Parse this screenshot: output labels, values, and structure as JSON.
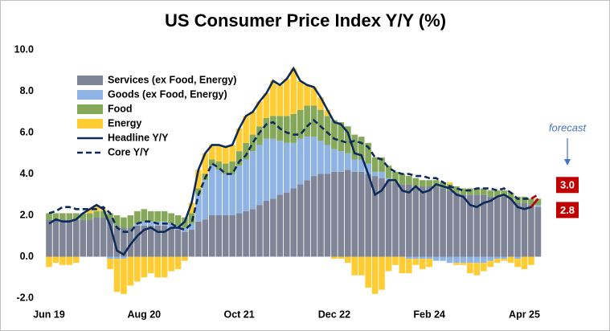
{
  "chart_data": {
    "type": "stacked-bar-line",
    "title": "US Consumer Price Index Y/Y (%)",
    "annotation": "forecast",
    "categories": [
      "Jun 19",
      null,
      null,
      null,
      null,
      null,
      null,
      null,
      null,
      null,
      null,
      null,
      null,
      null,
      "Aug 20",
      null,
      null,
      null,
      null,
      null,
      null,
      null,
      null,
      null,
      null,
      null,
      null,
      null,
      "Oct 21",
      null,
      null,
      null,
      null,
      null,
      null,
      null,
      null,
      null,
      null,
      null,
      null,
      null,
      "Dec 22",
      null,
      null,
      null,
      null,
      null,
      null,
      null,
      null,
      null,
      null,
      null,
      null,
      null,
      "Feb 24",
      null,
      null,
      null,
      null,
      null,
      null,
      null,
      null,
      null,
      null,
      null,
      null,
      null,
      "Apr 25",
      null,
      null
    ],
    "ylim": [
      -2,
      10
    ],
    "yticks": [
      {
        "value": -2,
        "label": "-2.0"
      },
      {
        "value": 0,
        "label": "0.0"
      },
      {
        "value": 2,
        "label": "2.0"
      },
      {
        "value": 4,
        "label": "4.0"
      },
      {
        "value": 6,
        "label": "6.0"
      },
      {
        "value": 8,
        "label": "8.0"
      },
      {
        "value": 10,
        "label": "10.0"
      }
    ],
    "grid": false,
    "legend": "upper-left",
    "forecast_color": "#c00000",
    "series": [
      {
        "name": "Services (ex Food, Energy)",
        "color": "#7f8596",
        "values": [
          1.8,
          1.8,
          1.8,
          1.8,
          1.8,
          1.8,
          1.8,
          1.9,
          1.9,
          1.8,
          1.5,
          1.4,
          1.4,
          1.5,
          1.5,
          1.5,
          1.5,
          1.5,
          1.4,
          1.3,
          1.2,
          1.3,
          1.7,
          1.8,
          2.0,
          2.0,
          2.0,
          2.0,
          2.1,
          2.2,
          2.3,
          2.5,
          2.7,
          2.8,
          3.0,
          3.1,
          3.3,
          3.5,
          3.7,
          3.9,
          4.0,
          4.0,
          4.1,
          4.1,
          4.2,
          4.1,
          4.1,
          4.0,
          3.9,
          3.8,
          3.7,
          3.6,
          3.5,
          3.5,
          3.4,
          3.4,
          3.4,
          3.4,
          3.3,
          3.2,
          3.1,
          3.0,
          3.0,
          3.0,
          3.0,
          2.9,
          2.9,
          2.9,
          2.8,
          2.6,
          2.6,
          2.5,
          2.4
        ]
      },
      {
        "name": "Goods (ex Food, Energy)",
        "color": "#8fb4e3",
        "values": [
          0.0,
          0.0,
          0.0,
          0.0,
          0.0,
          0.0,
          0.0,
          0.0,
          0.0,
          -0.1,
          -0.1,
          -0.1,
          0.0,
          0.1,
          0.2,
          0.2,
          0.2,
          0.2,
          0.2,
          0.2,
          0.2,
          0.3,
          1.3,
          1.9,
          2.4,
          2.2,
          2.0,
          2.0,
          2.3,
          2.5,
          2.8,
          2.9,
          3.0,
          2.9,
          2.6,
          2.4,
          2.2,
          2.2,
          2.1,
          1.9,
          1.6,
          1.4,
          1.1,
          1.0,
          0.8,
          0.6,
          0.6,
          0.5,
          0.2,
          0.3,
          0.1,
          0.0,
          0.0,
          -0.1,
          -0.1,
          -0.1,
          -0.1,
          -0.2,
          -0.2,
          -0.3,
          -0.3,
          -0.3,
          -0.3,
          -0.3,
          -0.3,
          -0.2,
          -0.1,
          -0.1,
          0.0,
          -0.1,
          0.0,
          0.0,
          0.1
        ]
      },
      {
        "name": "Food",
        "color": "#86a85a",
        "values": [
          0.3,
          0.3,
          0.3,
          0.3,
          0.3,
          0.3,
          0.3,
          0.3,
          0.3,
          0.3,
          0.5,
          0.5,
          0.6,
          0.6,
          0.6,
          0.5,
          0.5,
          0.5,
          0.5,
          0.5,
          0.5,
          0.5,
          0.3,
          0.3,
          0.3,
          0.4,
          0.5,
          0.6,
          0.7,
          0.8,
          0.8,
          0.9,
          1.0,
          1.1,
          1.2,
          1.3,
          1.4,
          1.4,
          1.5,
          1.5,
          1.5,
          1.4,
          1.4,
          1.4,
          1.3,
          1.2,
          1.1,
          1.0,
          0.7,
          0.7,
          0.6,
          0.5,
          0.5,
          0.4,
          0.4,
          0.3,
          0.3,
          0.3,
          0.3,
          0.3,
          0.3,
          0.3,
          0.3,
          0.3,
          0.3,
          0.3,
          0.3,
          0.3,
          0.3,
          0.3,
          0.3,
          0.3,
          0.3
        ]
      },
      {
        "name": "Energy",
        "color": "#ffcc33",
        "values": [
          -0.5,
          -0.3,
          -0.4,
          -0.4,
          -0.3,
          0.0,
          0.2,
          0.3,
          0.1,
          -0.5,
          -1.6,
          -1.7,
          -1.4,
          -1.2,
          -1.0,
          -0.8,
          -1.0,
          -1.0,
          -0.7,
          -0.6,
          -0.2,
          0.5,
          0.9,
          1.0,
          0.7,
          0.8,
          0.8,
          0.8,
          1.1,
          1.3,
          1.1,
          1.2,
          1.2,
          1.7,
          1.5,
          1.8,
          2.2,
          1.4,
          1.0,
          0.9,
          0.6,
          0.3,
          -0.1,
          -0.1,
          -0.3,
          -0.9,
          -0.9,
          -1.5,
          -1.8,
          -1.6,
          -0.7,
          -0.4,
          -0.8,
          -0.7,
          -0.3,
          -0.5,
          -0.4,
          0.0,
          0.0,
          0.1,
          -0.1,
          -0.1,
          -0.5,
          -0.6,
          -0.4,
          -0.3,
          -0.2,
          -0.1,
          -0.3,
          -0.4,
          -0.6,
          -0.4,
          0.0
        ]
      }
    ],
    "lines": [
      {
        "name": "Headline Y/Y",
        "color": "#0f2b5b",
        "dashed": false,
        "values": [
          1.6,
          1.8,
          1.7,
          1.7,
          1.8,
          2.1,
          2.3,
          2.5,
          2.3,
          1.5,
          0.3,
          0.1,
          0.6,
          1.0,
          1.3,
          1.4,
          1.2,
          1.2,
          1.4,
          1.4,
          1.7,
          2.6,
          4.2,
          5.0,
          5.4,
          5.4,
          5.3,
          5.4,
          6.2,
          6.8,
          7.0,
          7.5,
          7.9,
          8.5,
          8.3,
          8.6,
          9.1,
          8.5,
          8.3,
          8.2,
          7.7,
          7.1,
          6.5,
          6.4,
          6.0,
          5.0,
          4.9,
          4.0,
          3.0,
          3.2,
          3.7,
          3.7,
          3.2,
          3.1,
          3.4,
          3.1,
          3.2,
          3.5,
          3.4,
          3.3,
          3.0,
          2.9,
          2.5,
          2.4,
          2.6,
          2.7,
          2.9,
          3.0,
          2.8,
          2.4,
          2.3,
          2.4,
          2.8
        ],
        "value_labels": [
          null,
          null,
          null,
          null,
          null,
          null,
          null,
          null,
          null,
          null,
          null,
          null,
          null,
          null,
          null,
          null,
          null,
          null,
          null,
          null,
          null,
          null,
          null,
          null,
          null,
          null,
          null,
          null,
          null,
          null,
          null,
          null,
          null,
          null,
          null,
          null,
          null,
          null,
          null,
          null,
          null,
          null,
          null,
          null,
          null,
          null,
          null,
          null,
          null,
          null,
          null,
          null,
          null,
          null,
          null,
          null,
          null,
          null,
          null,
          null,
          null,
          null,
          null,
          null,
          null,
          null,
          null,
          null,
          null,
          null,
          null,
          null,
          "2.8"
        ]
      },
      {
        "name": "Core Y/Y",
        "color": "#0f2b5b",
        "dashed": true,
        "values": [
          2.1,
          2.2,
          2.4,
          2.4,
          2.3,
          2.3,
          2.3,
          2.3,
          2.4,
          2.1,
          1.4,
          1.2,
          1.2,
          1.6,
          1.7,
          1.7,
          1.6,
          1.6,
          1.6,
          1.4,
          1.3,
          1.6,
          3.0,
          3.8,
          4.5,
          4.3,
          4.0,
          4.0,
          4.6,
          4.9,
          5.5,
          6.0,
          6.4,
          6.5,
          6.2,
          6.0,
          5.9,
          5.9,
          6.3,
          6.6,
          6.3,
          6.0,
          5.7,
          5.6,
          5.5,
          5.6,
          5.5,
          5.3,
          4.8,
          4.7,
          4.3,
          4.1,
          4.0,
          4.0,
          3.9,
          3.9,
          3.8,
          3.8,
          3.6,
          3.4,
          3.3,
          3.2,
          3.2,
          3.3,
          3.3,
          3.3,
          3.2,
          3.3,
          3.1,
          2.8,
          2.8,
          2.8,
          3.0
        ],
        "value_labels": [
          null,
          null,
          null,
          null,
          null,
          null,
          null,
          null,
          null,
          null,
          null,
          null,
          null,
          null,
          null,
          null,
          null,
          null,
          null,
          null,
          null,
          null,
          null,
          null,
          null,
          null,
          null,
          null,
          null,
          null,
          null,
          null,
          null,
          null,
          null,
          null,
          null,
          null,
          null,
          null,
          null,
          null,
          null,
          null,
          null,
          null,
          null,
          null,
          null,
          null,
          null,
          null,
          null,
          null,
          null,
          null,
          null,
          null,
          null,
          null,
          null,
          null,
          null,
          null,
          null,
          null,
          null,
          null,
          null,
          null,
          null,
          null,
          "3.0"
        ]
      }
    ]
  }
}
